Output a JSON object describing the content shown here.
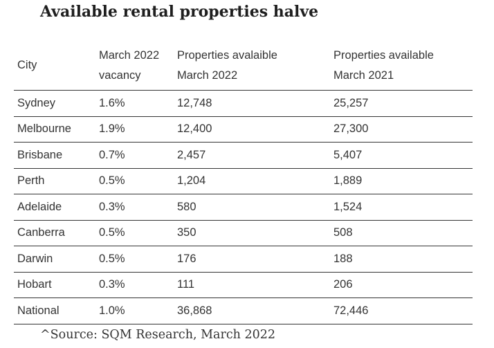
{
  "chart_data": {
    "type": "table",
    "title": "Available rental properties halve",
    "columns": [
      {
        "line1": "City",
        "line2": ""
      },
      {
        "line1": "March 2022",
        "line2": "vacancy"
      },
      {
        "line1": "Properties avalaible",
        "line2": "March 2022"
      },
      {
        "line1": "Properties available",
        "line2": "March 2021"
      }
    ],
    "rows": [
      {
        "city": "Sydney",
        "vacancy": "1.6%",
        "mar2022": "12,748",
        "mar2021": "25,257"
      },
      {
        "city": "Melbourne",
        "vacancy": "1.9%",
        "mar2022": "12,400",
        "mar2021": "27,300"
      },
      {
        "city": "Brisbane",
        "vacancy": "0.7%",
        "mar2022": "2,457",
        "mar2021": "5,407"
      },
      {
        "city": "Perth",
        "vacancy": "0.5%",
        "mar2022": "1,204",
        "mar2021": "1,889"
      },
      {
        "city": "Adelaide",
        "vacancy": "0.3%",
        "mar2022": "580",
        "mar2021": "1,524"
      },
      {
        "city": "Canberra",
        "vacancy": "0.5%",
        "mar2022": "350",
        "mar2021": "508"
      },
      {
        "city": "Darwin",
        "vacancy": "0.5%",
        "mar2022": "176",
        "mar2021": "188"
      },
      {
        "city": "Hobart",
        "vacancy": "0.3%",
        "mar2022": "111",
        "mar2021": "206"
      },
      {
        "city": "National",
        "vacancy": "1.0%",
        "mar2022": "36,868",
        "mar2021": "72,446"
      }
    ],
    "source": "^Source: SQM Research, March 2022"
  }
}
